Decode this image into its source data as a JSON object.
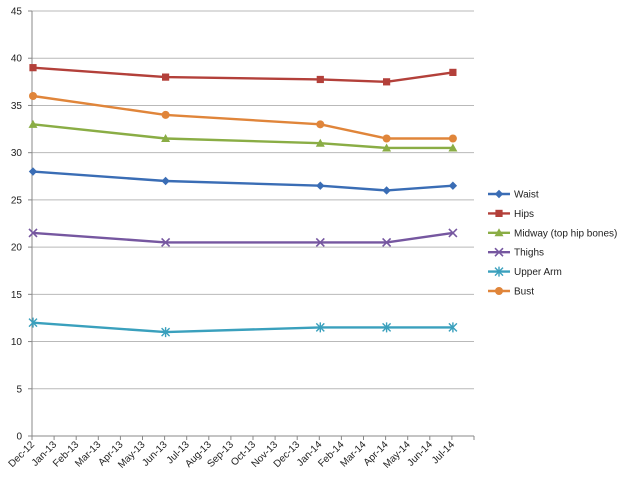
{
  "chart_data": {
    "type": "line",
    "title": "",
    "xlabel": "",
    "ylabel": "",
    "ylim": [
      0,
      45
    ],
    "y_ticks": [
      0,
      5,
      10,
      15,
      20,
      25,
      30,
      35,
      40,
      45
    ],
    "x_tick_labels": [
      "Dec-12",
      "Jan-13",
      "Feb-13",
      "Mar-13",
      "Apr-13",
      "May-13",
      "Jun-13",
      "Jul-13",
      "Aug-13",
      "Sep-13",
      "Oct-13",
      "Nov-13",
      "Dec-13",
      "Jan-14",
      "Feb-14",
      "Mar-14",
      "Apr-14",
      "May-14",
      "Jun-14",
      "Jul-14"
    ],
    "x": [
      "Dec-12",
      "Jun-13",
      "Jan-14",
      "Apr-14",
      "Jul-14"
    ],
    "grid": "horizontal",
    "legend_position": "right",
    "series": [
      {
        "name": "Waist",
        "color": "#3a6db5",
        "marker": "diamond",
        "values": [
          28,
          27,
          26.5,
          26,
          26.5
        ]
      },
      {
        "name": "Hips",
        "color": "#b3403a",
        "marker": "square",
        "values": [
          39,
          38,
          37.75,
          37.5,
          38.5
        ]
      },
      {
        "name": "Midway (top hip bones)",
        "color": "#8aad45",
        "marker": "triangle",
        "values": [
          33,
          31.5,
          31,
          30.5,
          30.5
        ]
      },
      {
        "name": "Thighs",
        "color": "#7657a0",
        "marker": "x",
        "values": [
          21.5,
          20.5,
          20.5,
          20.5,
          21.5
        ]
      },
      {
        "name": "Upper Arm",
        "color": "#3aa0bd",
        "marker": "star",
        "values": [
          12,
          11,
          11.5,
          11.5,
          11.5
        ]
      },
      {
        "name": "Bust",
        "color": "#e0853a",
        "marker": "circle",
        "values": [
          36,
          34,
          33,
          31.5,
          31.5
        ]
      }
    ]
  }
}
